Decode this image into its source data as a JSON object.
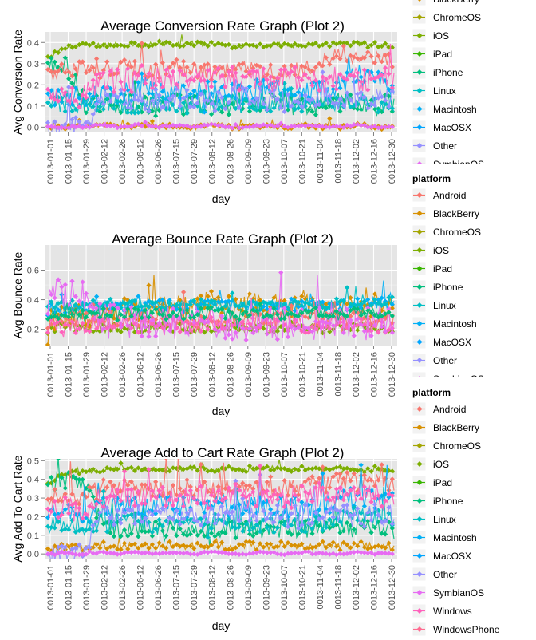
{
  "platform_colors": {
    "Android": "#F8766D",
    "BlackBerry": "#D89000",
    "ChromeOS": "#A3A500",
    "iOS": "#7CAE00",
    "iPad": "#39B600",
    "iPhone": "#00BF7D",
    "Linux": "#00BFC4",
    "Macintosh": "#00B0F6",
    "MacOSX": "#00A5FF",
    "Other": "#9590FF",
    "SymbianOS": "#E76BF3",
    "Windows": "#FF62BC",
    "WindowsPhone": "#FF6C91"
  },
  "chart_data": [
    {
      "type": "line",
      "title": "Average Conversion Rate Graph (Plot 2)",
      "xlabel": "day",
      "ylabel": "Avg Conversion Rate",
      "x_ticks": [
        "0013-01-01",
        "0013-01-15",
        "0013-01-29",
        "0013-02-12",
        "0013-02-26",
        "0013-06-12",
        "0013-06-26",
        "0013-07-15",
        "0013-07-29",
        "0013-08-12",
        "0013-08-26",
        "0013-09-09",
        "0013-09-23",
        "0013-10-07",
        "0013-10-21",
        "0013-11-04",
        "0013-11-18",
        "0013-12-02",
        "0013-12-16",
        "0013-12-30"
      ],
      "y_ticks": [
        "0.0",
        "0.1",
        "0.2",
        "0.3",
        "0.4"
      ],
      "y_tick_values": [
        0.0,
        0.1,
        0.2,
        0.3,
        0.4
      ],
      "ylim": [
        -0.025,
        0.45
      ],
      "legend_title": "",
      "legend_entries": [
        "BlackBerry",
        "ChromeOS",
        "iOS",
        "iPad",
        "iPhone",
        "Linux",
        "Macintosh",
        "MacOSX",
        "Other",
        "SymbianOS"
      ],
      "series": [
        {
          "name": "iOS",
          "levels": [
            0.33,
            0.38,
            0.39,
            0.385,
            0.39,
            0.39,
            0.395,
            0.39,
            0.395,
            0.39,
            0.385,
            0.38,
            0.39,
            0.39,
            0.385,
            0.39,
            0.395,
            0.39,
            0.39,
            0.38
          ],
          "noise": 0.012
        },
        {
          "name": "iPhone",
          "levels": [
            0.29,
            0.3,
            0.12,
            0.1,
            0.1,
            0.12,
            0.1,
            0.11,
            0.1,
            0.11,
            0.1,
            0.11,
            0.12,
            0.11,
            0.1,
            0.11,
            0.12,
            0.11,
            0.12,
            0.1
          ],
          "noise": 0.05
        },
        {
          "name": "Android",
          "levels": [
            0.26,
            0.27,
            0.27,
            0.27,
            0.28,
            0.27,
            0.26,
            0.28,
            0.27,
            0.26,
            0.27,
            0.28,
            0.27,
            0.26,
            0.27,
            0.3,
            0.35,
            0.33,
            0.34,
            0.3
          ],
          "noise": 0.04
        },
        {
          "name": "BlackBerry",
          "levels": [
            0.0,
            0.0,
            0.0,
            0.01,
            0.0,
            0.01,
            0.0,
            0.01,
            0.0,
            0.01,
            0.0,
            0.0,
            0.01,
            0.0,
            0.01,
            0.0,
            0.0,
            0.01,
            0.0,
            0.0
          ],
          "noise": 0.01
        },
        {
          "name": "Macintosh",
          "levels": [
            0.14,
            0.15,
            0.15,
            0.17,
            0.16,
            0.18,
            0.17,
            0.16,
            0.18,
            0.17,
            0.16,
            0.17,
            0.18,
            0.17,
            0.16,
            0.17,
            0.2,
            0.25,
            0.22,
            0.18
          ],
          "noise": 0.05
        },
        {
          "name": "Linux",
          "levels": [
            0.1,
            0.11,
            0.1,
            0.12,
            0.11,
            0.1,
            0.12,
            0.11,
            0.1,
            0.12,
            0.11,
            0.1,
            0.11,
            0.12,
            0.11,
            0.1,
            0.11,
            0.12,
            0.11,
            0.1
          ],
          "noise": 0.04
        },
        {
          "name": "Other",
          "levels": [
            0.0,
            0.0,
            0.0,
            0.13,
            0.14,
            0.13,
            0.12,
            0.14,
            0.13,
            0.12,
            0.13,
            0.14,
            0.13,
            0.12,
            0.13,
            0.14,
            0.13,
            0.12,
            0.13,
            0.13
          ],
          "noise": 0.05
        },
        {
          "name": "SymbianOS",
          "levels": [
            0.0,
            0.0,
            0.0,
            0.01,
            0.0,
            0.01,
            0.0,
            0.01,
            0.0,
            0.01,
            0.0,
            0.0,
            0.01,
            0.0,
            0.01,
            0.0,
            0.0,
            0.01,
            0.0,
            0.0
          ],
          "noise": 0.005
        },
        {
          "name": "Windows",
          "levels": [
            0.15,
            0.13,
            0.14,
            0.23,
            0.22,
            0.23,
            0.24,
            0.22,
            0.23,
            0.22,
            0.24,
            0.23,
            0.22,
            0.24,
            0.23,
            0.22,
            0.23,
            0.22,
            0.24,
            0.23
          ],
          "noise": 0.06
        }
      ]
    },
    {
      "type": "line",
      "title": "Average Bounce Rate Graph (Plot 2)",
      "xlabel": "day",
      "ylabel": "Avg Bounce Rate",
      "x_ticks": [
        "0013-01-01",
        "0013-01-15",
        "0013-01-29",
        "0013-02-12",
        "0013-02-26",
        "0013-06-12",
        "0013-06-26",
        "0013-07-15",
        "0013-07-29",
        "0013-08-12",
        "0013-08-26",
        "0013-09-09",
        "0013-09-23",
        "0013-10-07",
        "0013-10-21",
        "0013-11-04",
        "0013-11-18",
        "0013-12-02",
        "0013-12-16",
        "0013-12-30"
      ],
      "y_ticks": [
        "0.2",
        "0.4",
        "0.6"
      ],
      "y_tick_values": [
        0.2,
        0.4,
        0.6
      ],
      "ylim": [
        0.09,
        0.77
      ],
      "legend_title": "platform",
      "legend_entries": [
        "Android",
        "BlackBerry",
        "ChromeOS",
        "iOS",
        "iPad",
        "iPhone",
        "Linux",
        "Macintosh",
        "MacOSX",
        "Other",
        "SymbianOS"
      ],
      "series": [
        {
          "name": "iOS",
          "levels": [
            0.2,
            0.22,
            0.2,
            0.2,
            0.21,
            0.2,
            0.22,
            0.21,
            0.2,
            0.21,
            0.22,
            0.21,
            0.2,
            0.22,
            0.21,
            0.2,
            0.21,
            0.22,
            0.21,
            0.2
          ],
          "noise": 0.03
        },
        {
          "name": "BlackBerry",
          "levels": [
            0.25,
            0.3,
            0.28,
            0.32,
            0.34,
            0.33,
            0.35,
            0.34,
            0.36,
            0.38,
            0.35,
            0.36,
            0.37,
            0.35,
            0.4,
            0.36,
            0.35,
            0.37,
            0.36,
            0.35
          ],
          "noise": 0.08
        },
        {
          "name": "Macintosh",
          "levels": [
            0.33,
            0.35,
            0.34,
            0.36,
            0.35,
            0.36,
            0.37,
            0.36,
            0.35,
            0.36,
            0.37,
            0.36,
            0.35,
            0.37,
            0.36,
            0.35,
            0.36,
            0.37,
            0.38,
            0.38
          ],
          "noise": 0.04
        },
        {
          "name": "Linux",
          "levels": [
            0.38,
            0.37,
            0.36,
            0.38,
            0.37,
            0.38,
            0.37,
            0.36,
            0.38,
            0.37,
            0.36,
            0.38,
            0.37,
            0.36,
            0.38,
            0.37,
            0.38,
            0.37,
            0.38,
            0.4
          ],
          "noise": 0.03
        },
        {
          "name": "Android",
          "levels": [
            0.25,
            0.27,
            0.26,
            0.28,
            0.27,
            0.26,
            0.28,
            0.27,
            0.26,
            0.28,
            0.27,
            0.26,
            0.28,
            0.27,
            0.26,
            0.27,
            0.28,
            0.27,
            0.26,
            0.27
          ],
          "noise": 0.05
        },
        {
          "name": "Windows",
          "levels": [
            0.22,
            0.23,
            0.22,
            0.24,
            0.23,
            0.22,
            0.24,
            0.23,
            0.22,
            0.24,
            0.23,
            0.22,
            0.24,
            0.23,
            0.22,
            0.23,
            0.24,
            0.23,
            0.22,
            0.23
          ],
          "noise": 0.05
        },
        {
          "name": "SymbianOS",
          "levels": [
            0.4,
            0.45,
            0.42,
            0.25,
            0.25,
            0.24,
            0.25,
            0.24,
            0.25,
            0.24,
            0.25,
            0.24,
            0.25,
            0.24,
            0.25,
            0.24,
            0.25,
            0.24,
            0.25,
            0.24
          ],
          "noise": 0.12
        },
        {
          "name": "iPhone",
          "levels": [
            0.3,
            0.31,
            0.3,
            0.31,
            0.3,
            0.31,
            0.3,
            0.31,
            0.3,
            0.31,
            0.3,
            0.31,
            0.3,
            0.31,
            0.3,
            0.31,
            0.3,
            0.31,
            0.3,
            0.31
          ],
          "noise": 0.04
        }
      ]
    },
    {
      "type": "line",
      "title": "Average Add to Cart Rate Graph (Plot 2)",
      "xlabel": "day",
      "ylabel": "Avg Add To Cart Rate",
      "x_ticks": [
        "0013-01-01",
        "0013-01-15",
        "0013-01-29",
        "0013-02-12",
        "0013-02-26",
        "0013-06-12",
        "0013-06-26",
        "0013-07-15",
        "0013-07-29",
        "0013-08-12",
        "0013-08-26",
        "0013-09-09",
        "0013-09-23",
        "0013-10-07",
        "0013-10-21",
        "0013-11-04",
        "0013-11-18",
        "0013-12-02",
        "0013-12-16",
        "0013-12-30"
      ],
      "y_ticks": [
        "0.0",
        "0.1",
        "0.2",
        "0.3",
        "0.4",
        "0.5"
      ],
      "y_tick_values": [
        0.0,
        0.1,
        0.2,
        0.3,
        0.4,
        0.5
      ],
      "ylim": [
        -0.025,
        0.51
      ],
      "legend_title": "platform",
      "legend_entries": [
        "Android",
        "BlackBerry",
        "ChromeOS",
        "iOS",
        "iPad",
        "iPhone",
        "Linux",
        "Macintosh",
        "MacOSX",
        "Other",
        "SymbianOS",
        "Windows",
        "WindowsPhone"
      ],
      "series": [
        {
          "name": "iOS",
          "levels": [
            0.38,
            0.43,
            0.44,
            0.45,
            0.46,
            0.45,
            0.46,
            0.45,
            0.46,
            0.45,
            0.46,
            0.45,
            0.46,
            0.45,
            0.46,
            0.45,
            0.46,
            0.45,
            0.45,
            0.44
          ],
          "noise": 0.012
        },
        {
          "name": "iPhone",
          "levels": [
            0.38,
            0.4,
            0.38,
            0.15,
            0.13,
            0.14,
            0.13,
            0.14,
            0.13,
            0.14,
            0.13,
            0.14,
            0.13,
            0.14,
            0.13,
            0.14,
            0.13,
            0.14,
            0.15,
            0.12
          ],
          "noise": 0.05
        },
        {
          "name": "Android",
          "levels": [
            0.3,
            0.32,
            0.31,
            0.35,
            0.36,
            0.35,
            0.36,
            0.35,
            0.36,
            0.35,
            0.36,
            0.35,
            0.36,
            0.35,
            0.36,
            0.37,
            0.4,
            0.38,
            0.39,
            0.35
          ],
          "noise": 0.05
        },
        {
          "name": "BlackBerry",
          "levels": [
            0.03,
            0.04,
            0.03,
            0.05,
            0.04,
            0.05,
            0.04,
            0.05,
            0.04,
            0.05,
            0.04,
            0.05,
            0.04,
            0.05,
            0.04,
            0.05,
            0.04,
            0.05,
            0.04,
            0.04
          ],
          "noise": 0.02
        },
        {
          "name": "Macintosh",
          "levels": [
            0.2,
            0.22,
            0.21,
            0.25,
            0.26,
            0.25,
            0.26,
            0.25,
            0.26,
            0.25,
            0.26,
            0.25,
            0.26,
            0.25,
            0.26,
            0.25,
            0.28,
            0.3,
            0.29,
            0.27
          ],
          "noise": 0.06
        },
        {
          "name": "Linux",
          "levels": [
            0.15,
            0.16,
            0.15,
            0.17,
            0.16,
            0.17,
            0.16,
            0.17,
            0.16,
            0.17,
            0.16,
            0.17,
            0.16,
            0.17,
            0.16,
            0.17,
            0.2,
            0.22,
            0.2,
            0.18
          ],
          "noise": 0.05
        },
        {
          "name": "Other",
          "levels": [
            0.0,
            0.0,
            0.0,
            0.2,
            0.21,
            0.2,
            0.21,
            0.2,
            0.21,
            0.2,
            0.21,
            0.2,
            0.21,
            0.2,
            0.21,
            0.2,
            0.21,
            0.2,
            0.21,
            0.2
          ],
          "noise": 0.06
        },
        {
          "name": "SymbianOS",
          "levels": [
            0.0,
            0.0,
            0.0,
            0.01,
            0.0,
            0.01,
            0.0,
            0.01,
            0.0,
            0.01,
            0.0,
            0.0,
            0.01,
            0.0,
            0.01,
            0.0,
            0.0,
            0.01,
            0.0,
            0.0
          ],
          "noise": 0.005
        },
        {
          "name": "Windows",
          "levels": [
            0.24,
            0.25,
            0.24,
            0.3,
            0.32,
            0.3,
            0.32,
            0.3,
            0.32,
            0.3,
            0.32,
            0.3,
            0.32,
            0.3,
            0.32,
            0.3,
            0.32,
            0.3,
            0.32,
            0.3
          ],
          "noise": 0.06
        }
      ]
    }
  ]
}
